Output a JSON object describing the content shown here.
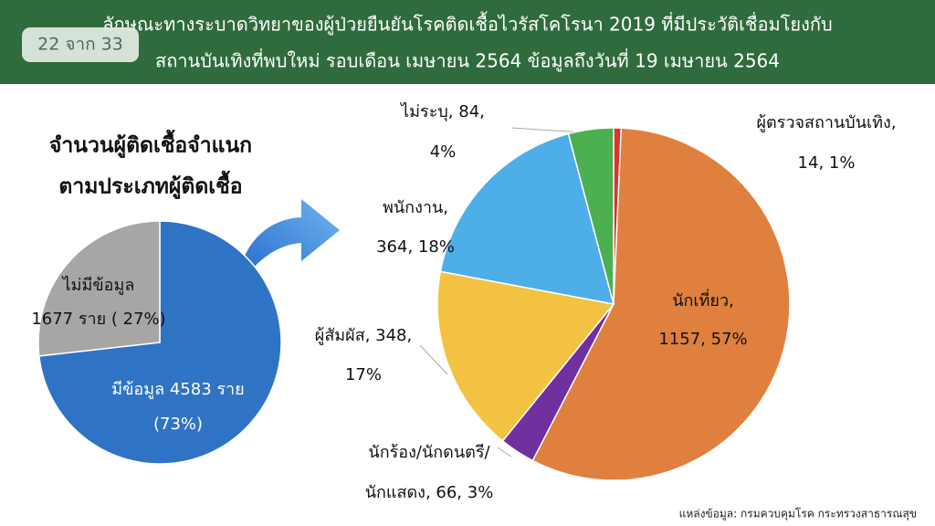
{
  "header": {
    "title": [
      "ลักษณะทางระบาดวิทยาของผู้ป่วยยืนยันโรคติดเชื้อไวรัสโคโรนา 2019 ที่มีประวัติเชื่อมโยงกับ",
      "สถานบันเทิงที่พบใหม่ รอบเดือน เมษายน 2564 ข้อมูลถึงวันที่ 19 เมษายน 2564"
    ],
    "page": "22 จาก 33"
  },
  "chart_data": [
    {
      "type": "pie",
      "title": [
        "จำนวนผู้ติดเชื้อจำแนก",
        "ตามประเภทผู้ติดเชื้อ"
      ],
      "values": [
        4583,
        1677
      ],
      "value_labels": [
        [
          "มีข้อมูล 4583 ราย",
          "(73%)"
        ],
        [
          "ไม่มีข้อมูล",
          "1677 ราย ( 27%)"
        ]
      ],
      "colors": [
        "#2f74c4",
        "#a6a6a6"
      ]
    },
    {
      "type": "pie",
      "values": [
        14,
        1157,
        66,
        348,
        364,
        84
      ],
      "value_labels": [
        [
          "ผู้ตรวจสถานบันเทิง,",
          "14, 1%"
        ],
        [
          "นักเที่ยว,",
          "1157, 57%"
        ],
        [
          "นักร้อง/นักดนตรี/",
          "นักแสดง, 66, 3%"
        ],
        [
          "ผู้สัมผัส, 348,",
          "17%"
        ],
        [
          "พนักงาน,",
          "364, 18%"
        ],
        [
          "ไม่ระบุ, 84,",
          "4%"
        ]
      ],
      "colors": [
        "#e0312a",
        "#e0803f",
        "#7030a0",
        "#f4c242",
        "#4eaee8",
        "#4caf50"
      ]
    }
  ],
  "source": "แหล่งข้อมูล: กรมควบคุมโรค กระทรวงสาธารณสุข"
}
